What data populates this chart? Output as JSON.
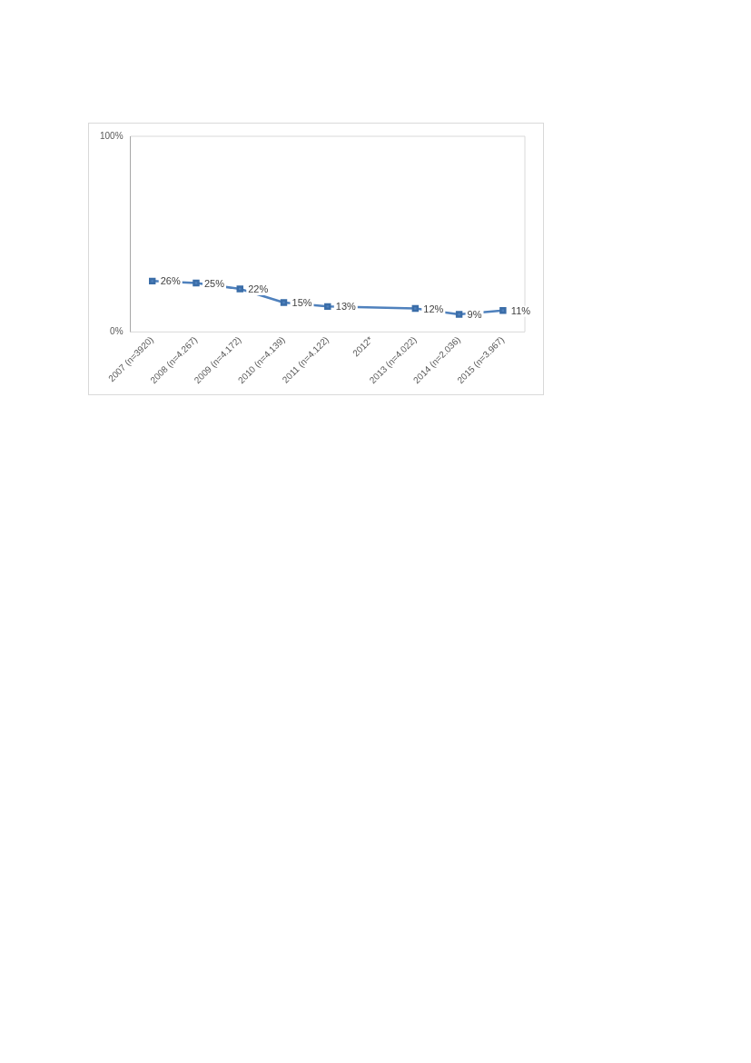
{
  "chart_data": {
    "type": "line",
    "categories": [
      "2007 (n=3920)",
      "2008 (n=4.267)",
      "2009 (n=4.172)",
      "2010 (n=4.139)",
      "2011 (n=4.122)",
      "2012*",
      "2013 (n=4.022)",
      "2014 (n=2.036)",
      "2015 (n=3.967)"
    ],
    "series": [
      {
        "color": "#4f81bd",
        "values": [
          26,
          25,
          22,
          15,
          13,
          null,
          12,
          9,
          11
        ],
        "value_labels": [
          "26%",
          "25%",
          "22%",
          "15%",
          "13%",
          null,
          "12%",
          "9%",
          "11%"
        ]
      }
    ],
    "ylim": [
      0,
      100
    ],
    "yticks": [
      {
        "value": 0,
        "label": "0%"
      },
      {
        "value": 100,
        "label": "100%"
      }
    ],
    "grid": false,
    "legend": false,
    "marker": "square",
    "line_style": "solid"
  }
}
